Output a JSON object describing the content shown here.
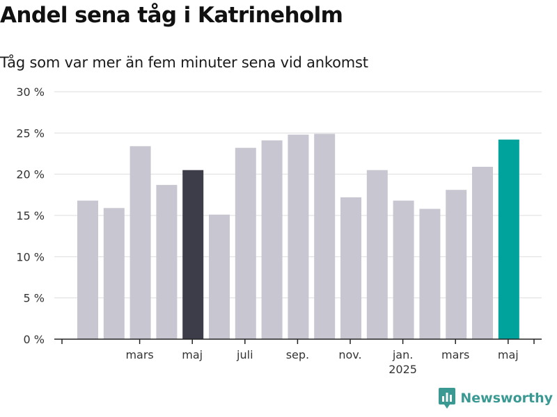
{
  "header": {
    "title": "Andel sena tåg i Katrineholm",
    "subtitle": "Tåg som var mer än fem minuter sena vid ankomst"
  },
  "brand": {
    "name": "Newsworthy"
  },
  "colors": {
    "bar_default": "#c8c7d1",
    "bar_highlight_dark": "#3d3d4a",
    "bar_highlight_accent": "#00a39b",
    "grid": "#dddddd",
    "axis": "#222222",
    "brand": "#3a9a93"
  },
  "chart_data": {
    "type": "bar",
    "title": "",
    "xlabel": "",
    "ylabel": "",
    "ylim": [
      0,
      30
    ],
    "y_ticks": [
      0,
      5,
      10,
      15,
      20,
      25,
      30
    ],
    "y_tick_labels": [
      "0 %",
      "5 %",
      "10 %",
      "15 %",
      "20 %",
      "25 %",
      "30 %"
    ],
    "x_ticks": [
      {
        "index": 2,
        "label": "mars"
      },
      {
        "index": 4,
        "label": "maj"
      },
      {
        "index": 6,
        "label": "juli"
      },
      {
        "index": 8,
        "label": "sep."
      },
      {
        "index": 10,
        "label": "nov."
      },
      {
        "index": 12,
        "label": "jan.",
        "sublabel": "2025"
      },
      {
        "index": 14,
        "label": "mars"
      },
      {
        "index": 16,
        "label": "maj"
      }
    ],
    "values": [
      16.8,
      15.9,
      23.4,
      18.7,
      20.5,
      15.1,
      23.2,
      24.1,
      24.8,
      24.9,
      17.2,
      20.5,
      16.8,
      15.8,
      18.1,
      20.9,
      24.2
    ],
    "highlight": {
      "dark": [
        4
      ],
      "accent": [
        16
      ]
    },
    "grid": true
  }
}
